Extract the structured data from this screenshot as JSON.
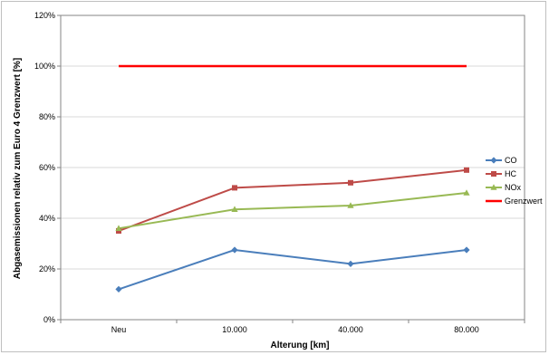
{
  "chart_data": {
    "type": "line",
    "categories": [
      "Neu",
      "10.000",
      "40.000",
      "80.000"
    ],
    "xlabel": "Alterung [km]",
    "ylabel": "Abgasemissionen relativ zum Euro 4 Grenzwert [%]",
    "ylim": [
      0,
      120
    ],
    "ytick_values": [
      0,
      20,
      40,
      60,
      80,
      100,
      120
    ],
    "ytick_labels": [
      "0%",
      "20%",
      "40%",
      "60%",
      "80%",
      "100%",
      "120%"
    ],
    "grid": true,
    "legend_position": "right",
    "series": [
      {
        "name": "CO",
        "values": [
          12,
          27.5,
          22,
          27.5
        ],
        "color": "#4a7ebb",
        "marker": "diamond"
      },
      {
        "name": "HC",
        "values": [
          35,
          52,
          54,
          59
        ],
        "color": "#be4b48",
        "marker": "square"
      },
      {
        "name": "NOx",
        "values": [
          36,
          43.5,
          45,
          50
        ],
        "color": "#98b954",
        "marker": "triangle"
      },
      {
        "name": "Grenzwert",
        "values": [
          100,
          100,
          100,
          100
        ],
        "color": "#ff0000",
        "marker": "none"
      }
    ]
  }
}
